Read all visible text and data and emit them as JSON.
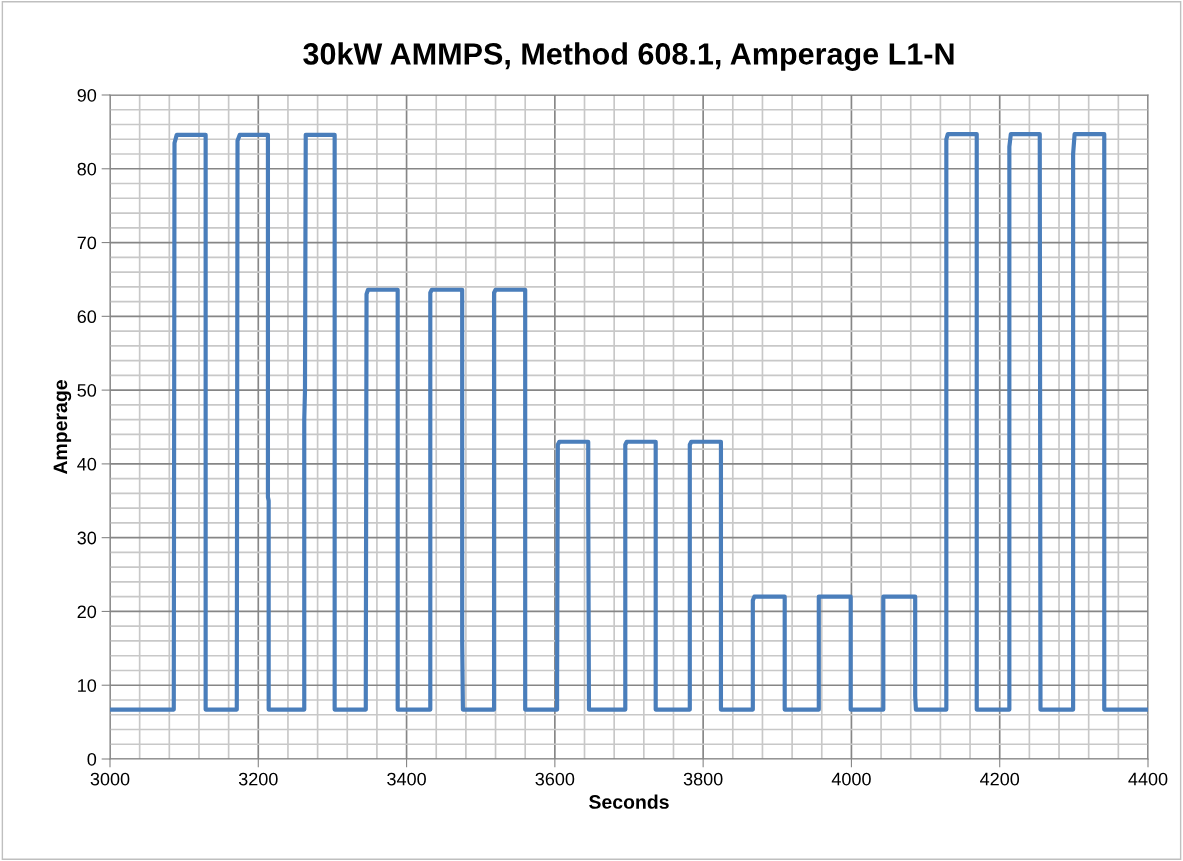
{
  "chart_data": {
    "type": "line",
    "title": "30kW AMMPS, Method 608.1, Amperage L1-N",
    "xlabel": "Seconds",
    "ylabel": "Amperage",
    "series": [
      {
        "color": "#4a7ebb",
        "x": [
          3000,
          3086,
          3087,
          3090,
          3129,
          3129,
          3171,
          3172,
          3175,
          3213,
          3213,
          3214,
          3214,
          3262,
          3262,
          3263,
          3264,
          3303,
          3303,
          3345,
          3345,
          3346,
          3348,
          3388,
          3388,
          3432,
          3432,
          3434,
          3475,
          3475,
          3476,
          3518,
          3518,
          3520,
          3560,
          3560,
          3603,
          3603,
          3604,
          3606,
          3645,
          3645,
          3646,
          3695,
          3695,
          3697,
          3736,
          3736,
          3782,
          3782,
          3784,
          3824,
          3824,
          3867,
          3867,
          3869,
          3910,
          3910,
          3956,
          3956,
          3999,
          3999,
          4043,
          4043,
          4086,
          4086,
          4087,
          4128,
          4128,
          4130,
          4169,
          4169,
          4213,
          4213,
          4215,
          4254,
          4255,
          4299,
          4299,
          4301,
          4341,
          4341,
          4400
        ],
        "values": [
          6.7,
          6.7,
          83.5,
          84.6,
          84.6,
          6.7,
          6.7,
          83.8,
          84.6,
          84.6,
          35.5,
          35,
          6.7,
          6.7,
          46,
          50,
          84.6,
          84.6,
          6.7,
          6.7,
          8.5,
          63,
          63.6,
          63.6,
          6.7,
          6.7,
          63.2,
          63.6,
          63.6,
          16,
          6.7,
          6.7,
          63.2,
          63.6,
          63.6,
          6.7,
          6.7,
          10,
          42.6,
          43,
          43,
          35,
          6.7,
          6.7,
          42.6,
          43,
          43,
          6.7,
          6.7,
          42.6,
          43,
          43,
          6.7,
          6.7,
          21.5,
          22,
          22,
          6.7,
          6.7,
          22,
          22,
          6.7,
          6.7,
          22,
          22,
          8.5,
          6.7,
          6.7,
          84,
          84.7,
          84.7,
          6.7,
          6.7,
          83,
          84.7,
          84.7,
          6.7,
          6.7,
          82,
          84.7,
          84.7,
          6.7,
          6.7
        ]
      }
    ],
    "xlim": [
      3000,
      4400
    ],
    "ylim": [
      0,
      90
    ],
    "xticks": [
      3000,
      {
        "value": 3040,
        "label": null
      },
      {
        "value": 3080,
        "label": null
      },
      {
        "value": 3120,
        "label": null
      },
      {
        "value": 3160,
        "label": null
      },
      3200,
      {
        "value": 3240,
        "label": null
      },
      {
        "value": 3280,
        "label": null
      },
      {
        "value": 3320,
        "label": null
      },
      {
        "value": 3360,
        "label": null
      },
      3400,
      {
        "value": 3440,
        "label": null
      },
      {
        "value": 3480,
        "label": null
      },
      {
        "value": 3520,
        "label": null
      },
      {
        "value": 3560,
        "label": null
      },
      3600,
      {
        "value": 3640,
        "label": null
      },
      {
        "value": 3680,
        "label": null
      },
      {
        "value": 3720,
        "label": null
      },
      {
        "value": 3760,
        "label": null
      },
      3800,
      {
        "value": 3840,
        "label": null
      },
      {
        "value": 3880,
        "label": null
      },
      {
        "value": 3920,
        "label": null
      },
      {
        "value": 3960,
        "label": null
      },
      4000,
      {
        "value": 4040,
        "label": null
      },
      {
        "value": 4080,
        "label": null
      },
      {
        "value": 4120,
        "label": null
      },
      {
        "value": 4160,
        "label": null
      },
      4200,
      {
        "value": 4240,
        "label": null
      },
      {
        "value": 4280,
        "label": null
      },
      {
        "value": 4320,
        "label": null
      },
      {
        "value": 4360,
        "label": null
      },
      4400
    ],
    "yticks": [
      0,
      {
        "value": 2,
        "label": null
      },
      {
        "value": 4,
        "label": null
      },
      {
        "value": 6,
        "label": null
      },
      {
        "value": 8,
        "label": null
      },
      10,
      {
        "value": 12,
        "label": null
      },
      {
        "value": 14,
        "label": null
      },
      {
        "value": 16,
        "label": null
      },
      {
        "value": 18,
        "label": null
      },
      20,
      {
        "value": 22,
        "label": null
      },
      {
        "value": 24,
        "label": null
      },
      {
        "value": 26,
        "label": null
      },
      {
        "value": 28,
        "label": null
      },
      30,
      {
        "value": 32,
        "label": null
      },
      {
        "value": 34,
        "label": null
      },
      {
        "value": 36,
        "label": null
      },
      {
        "value": 38,
        "label": null
      },
      40,
      {
        "value": 42,
        "label": null
      },
      {
        "value": 44,
        "label": null
      },
      {
        "value": 46,
        "label": null
      },
      {
        "value": 48,
        "label": null
      },
      50,
      {
        "value": 52,
        "label": null
      },
      {
        "value": 54,
        "label": null
      },
      {
        "value": 56,
        "label": null
      },
      {
        "value": 58,
        "label": null
      },
      60,
      {
        "value": 62,
        "label": null
      },
      {
        "value": 64,
        "label": null
      },
      {
        "value": 66,
        "label": null
      },
      {
        "value": 68,
        "label": null
      },
      70,
      {
        "value": 72,
        "label": null
      },
      {
        "value": 74,
        "label": null
      },
      {
        "value": 76,
        "label": null
      },
      {
        "value": 78,
        "label": null
      },
      80,
      {
        "value": 82,
        "label": null
      },
      {
        "value": 84,
        "label": null
      },
      {
        "value": 86,
        "label": null
      },
      {
        "value": 88,
        "label": null
      },
      90
    ],
    "grid": true,
    "legend": false,
    "marker": "none",
    "line_style": "solid"
  }
}
